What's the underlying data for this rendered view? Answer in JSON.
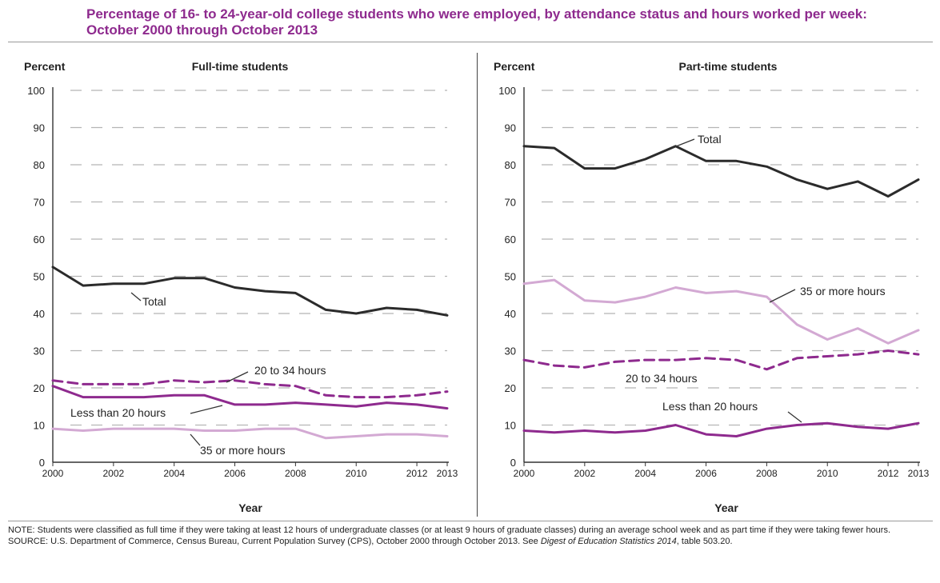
{
  "title": "Percentage of 16- to 24-year-old college students who were employed, by attendance status and hours worked per week: October 2000 through October 2013",
  "colors": {
    "title": "#8e2a8e",
    "total": "#2b2b2b",
    "less_than_20": "#8e2a8e",
    "between_20_34": "#8e2a8e",
    "35_or_more": "#d3a9d3",
    "grid": "#b5b5b5"
  },
  "chart_data": [
    {
      "type": "line",
      "title": "Full-time students",
      "ylabel": "Percent",
      "xlabel": "Year",
      "ylim": [
        0,
        100
      ],
      "yticks": [
        0,
        10,
        20,
        30,
        40,
        50,
        60,
        70,
        80,
        90,
        100
      ],
      "x": [
        2000,
        2001,
        2002,
        2003,
        2004,
        2005,
        2006,
        2007,
        2008,
        2009,
        2010,
        2011,
        2012,
        2013
      ],
      "xtick_labels": [
        "2000",
        "2002",
        "2004",
        "2006",
        "2008",
        "2010",
        "2012",
        "2013"
      ],
      "grid": "horizontal dashed",
      "series": [
        {
          "name": "Total",
          "style": "solid",
          "color": "#2b2b2b",
          "values": [
            52.5,
            47.5,
            48,
            48,
            49.5,
            49.5,
            47,
            46,
            45.5,
            41,
            40,
            41.5,
            41,
            39.5
          ]
        },
        {
          "name": "20 to 34 hours",
          "style": "dashed",
          "color": "#8e2a8e",
          "values": [
            22,
            21,
            21,
            21,
            22,
            21.5,
            22,
            21,
            20.5,
            18,
            17.5,
            17.5,
            18,
            19
          ]
        },
        {
          "name": "Less than 20 hours",
          "style": "solid",
          "color": "#8e2a8e",
          "values": [
            20.5,
            17.5,
            17.5,
            17.5,
            18,
            18,
            15.5,
            15.5,
            16,
            15.5,
            15,
            16,
            15.5,
            14.5
          ]
        },
        {
          "name": "35 or more hours",
          "style": "solid",
          "color": "#d3a9d3",
          "values": [
            9,
            8.5,
            9,
            9,
            9,
            8.5,
            8.5,
            9,
            9,
            6.5,
            7,
            7.5,
            7.5,
            7
          ]
        }
      ],
      "annotations": [
        "Total",
        "20 to 34 hours",
        "Less than 20 hours",
        "35 or more hours"
      ]
    },
    {
      "type": "line",
      "title": "Part-time students",
      "ylabel": "Percent",
      "xlabel": "Year",
      "ylim": [
        0,
        100
      ],
      "yticks": [
        0,
        10,
        20,
        30,
        40,
        50,
        60,
        70,
        80,
        90,
        100
      ],
      "x": [
        2000,
        2001,
        2002,
        2003,
        2004,
        2005,
        2006,
        2007,
        2008,
        2009,
        2010,
        2011,
        2012,
        2013
      ],
      "xtick_labels": [
        "2000",
        "2002",
        "2004",
        "2006",
        "2008",
        "2010",
        "2012",
        "2013"
      ],
      "grid": "horizontal dashed",
      "series": [
        {
          "name": "Total",
          "style": "solid",
          "color": "#2b2b2b",
          "values": [
            85,
            84.5,
            79,
            79,
            81.5,
            85,
            81,
            81,
            79.5,
            76,
            73.5,
            75.5,
            71.5,
            76
          ]
        },
        {
          "name": "35 or more hours",
          "style": "solid",
          "color": "#d3a9d3",
          "values": [
            48,
            49,
            43.5,
            43,
            44.5,
            47,
            45.5,
            46,
            44.5,
            37,
            33,
            36,
            32,
            35.5
          ]
        },
        {
          "name": "20 to 34 hours",
          "style": "dashed",
          "color": "#8e2a8e",
          "values": [
            27.5,
            26,
            25.5,
            27,
            27.5,
            27.5,
            28,
            27.5,
            25,
            28,
            28.5,
            29,
            30,
            29
          ]
        },
        {
          "name": "Less than 20 hours",
          "style": "solid",
          "color": "#8e2a8e",
          "values": [
            8.5,
            8,
            8.5,
            8,
            8.5,
            10,
            7.5,
            7,
            9,
            10,
            10.5,
            9.5,
            9,
            10.5
          ]
        }
      ],
      "annotations": [
        "Total",
        "35 or more hours",
        "20 to 34 hours",
        "Less than 20 hours"
      ]
    }
  ],
  "notes": {
    "note": "NOTE: Students were classified as full time if they were taking at least 12 hours of undergraduate classes (or at least 9 hours of graduate classes) during an average school week and as part time if they were taking fewer hours.",
    "source_prefix": "SOURCE: U.S. Department of Commerce, Census Bureau, Current Population Survey (CPS), October 2000 through October 2013. See ",
    "source_italic": "Digest of Education Statistics 2014",
    "source_suffix": ", table 503.20."
  }
}
